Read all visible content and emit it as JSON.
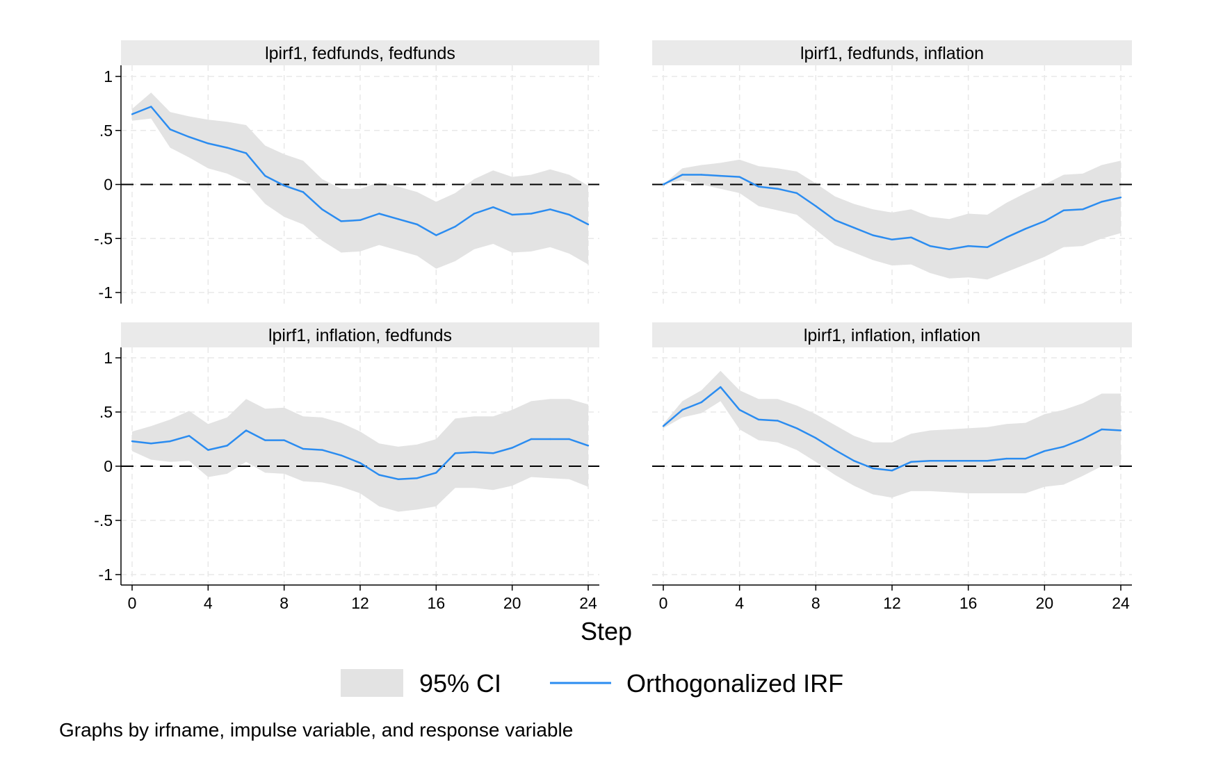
{
  "chart_data": {
    "type": "line",
    "panels": [
      {
        "title": "lpirf1, fedfunds, fedfunds",
        "x": [
          0,
          1,
          2,
          3,
          4,
          5,
          6,
          7,
          8,
          9,
          10,
          11,
          12,
          13,
          14,
          15,
          16,
          17,
          18,
          19,
          20,
          21,
          22,
          23,
          24
        ],
        "irf": [
          0.65,
          0.72,
          0.51,
          0.44,
          0.38,
          0.34,
          0.29,
          0.08,
          -0.01,
          -0.07,
          -0.23,
          -0.34,
          -0.33,
          -0.27,
          -0.32,
          -0.37,
          -0.47,
          -0.39,
          -0.27,
          -0.21,
          -0.28,
          -0.27,
          -0.23,
          -0.28,
          -0.37
        ],
        "ci_lower": [
          0.59,
          0.61,
          0.34,
          0.25,
          0.15,
          0.1,
          0.02,
          -0.18,
          -0.3,
          -0.37,
          -0.52,
          -0.63,
          -0.62,
          -0.56,
          -0.61,
          -0.66,
          -0.78,
          -0.71,
          -0.6,
          -0.55,
          -0.63,
          -0.62,
          -0.58,
          -0.64,
          -0.74
        ],
        "ci_upper": [
          0.7,
          0.85,
          0.67,
          0.63,
          0.6,
          0.58,
          0.55,
          0.36,
          0.28,
          0.22,
          0.05,
          -0.04,
          -0.04,
          0.02,
          -0.02,
          -0.07,
          -0.16,
          -0.08,
          0.05,
          0.13,
          0.07,
          0.09,
          0.14,
          0.09,
          -0.01
        ]
      },
      {
        "title": "lpirf1, fedfunds, inflation",
        "x": [
          0,
          1,
          2,
          3,
          4,
          5,
          6,
          7,
          8,
          9,
          10,
          11,
          12,
          13,
          14,
          15,
          16,
          17,
          18,
          19,
          20,
          21,
          22,
          23,
          24
        ],
        "irf": [
          0.0,
          0.09,
          0.09,
          0.08,
          0.07,
          -0.02,
          -0.04,
          -0.08,
          -0.2,
          -0.33,
          -0.4,
          -0.47,
          -0.51,
          -0.49,
          -0.57,
          -0.6,
          -0.57,
          -0.58,
          -0.49,
          -0.41,
          -0.34,
          -0.24,
          -0.23,
          -0.16,
          -0.12
        ],
        "ci_lower": [
          0.0,
          0.04,
          0.0,
          -0.04,
          -0.08,
          -0.2,
          -0.24,
          -0.28,
          -0.42,
          -0.56,
          -0.63,
          -0.7,
          -0.75,
          -0.74,
          -0.82,
          -0.87,
          -0.86,
          -0.88,
          -0.81,
          -0.74,
          -0.67,
          -0.58,
          -0.57,
          -0.5,
          -0.45
        ],
        "ci_upper": [
          0.0,
          0.15,
          0.18,
          0.2,
          0.23,
          0.17,
          0.15,
          0.12,
          0.01,
          -0.11,
          -0.18,
          -0.23,
          -0.26,
          -0.23,
          -0.3,
          -0.32,
          -0.27,
          -0.28,
          -0.17,
          -0.08,
          0.0,
          0.09,
          0.1,
          0.18,
          0.22
        ]
      },
      {
        "title": "lpirf1, inflation, fedfunds",
        "x": [
          0,
          1,
          2,
          3,
          4,
          5,
          6,
          7,
          8,
          9,
          10,
          11,
          12,
          13,
          14,
          15,
          16,
          17,
          18,
          19,
          20,
          21,
          22,
          23,
          24
        ],
        "irf": [
          0.23,
          0.21,
          0.23,
          0.28,
          0.15,
          0.19,
          0.33,
          0.24,
          0.24,
          0.16,
          0.15,
          0.1,
          0.03,
          -0.08,
          -0.12,
          -0.11,
          -0.06,
          0.12,
          0.13,
          0.12,
          0.17,
          0.25,
          0.25,
          0.25,
          0.19
        ],
        "ci_lower": [
          0.14,
          0.06,
          0.04,
          0.05,
          -0.1,
          -0.07,
          0.04,
          -0.06,
          -0.07,
          -0.14,
          -0.15,
          -0.19,
          -0.25,
          -0.37,
          -0.42,
          -0.4,
          -0.37,
          -0.2,
          -0.2,
          -0.22,
          -0.18,
          -0.1,
          -0.11,
          -0.12,
          -0.19
        ],
        "ci_upper": [
          0.32,
          0.37,
          0.43,
          0.51,
          0.39,
          0.45,
          0.62,
          0.53,
          0.54,
          0.46,
          0.45,
          0.4,
          0.32,
          0.21,
          0.18,
          0.2,
          0.25,
          0.44,
          0.46,
          0.46,
          0.52,
          0.6,
          0.62,
          0.62,
          0.57
        ]
      },
      {
        "title": "lpirf1, inflation, inflation",
        "x": [
          0,
          1,
          2,
          3,
          4,
          5,
          6,
          7,
          8,
          9,
          10,
          11,
          12,
          13,
          14,
          15,
          16,
          17,
          18,
          19,
          20,
          21,
          22,
          23,
          24
        ],
        "irf": [
          0.37,
          0.52,
          0.59,
          0.73,
          0.52,
          0.43,
          0.42,
          0.35,
          0.26,
          0.15,
          0.05,
          -0.02,
          -0.04,
          0.04,
          0.05,
          0.05,
          0.05,
          0.05,
          0.07,
          0.07,
          0.14,
          0.18,
          0.25,
          0.34,
          0.33
        ],
        "ci_lower": [
          0.35,
          0.45,
          0.49,
          0.6,
          0.34,
          0.24,
          0.22,
          0.15,
          0.04,
          -0.08,
          -0.18,
          -0.26,
          -0.29,
          -0.23,
          -0.23,
          -0.24,
          -0.25,
          -0.25,
          -0.25,
          -0.25,
          -0.19,
          -0.17,
          -0.09,
          0.0,
          0.0
        ],
        "ci_upper": [
          0.39,
          0.6,
          0.7,
          0.88,
          0.7,
          0.62,
          0.62,
          0.56,
          0.48,
          0.38,
          0.28,
          0.22,
          0.22,
          0.3,
          0.33,
          0.34,
          0.35,
          0.36,
          0.39,
          0.4,
          0.48,
          0.52,
          0.58,
          0.67,
          0.67
        ]
      }
    ],
    "xlabel": "Step",
    "ylabel": "",
    "xlim": [
      0,
      24
    ],
    "ylim": [
      -1,
      1
    ],
    "xticks": [
      "0",
      "4",
      "8",
      "12",
      "16",
      "20",
      "24"
    ],
    "xtick_values": [
      0,
      4,
      8,
      12,
      16,
      20,
      24
    ],
    "yticks": [
      "1",
      ".5",
      "0",
      "-.5",
      "-1"
    ],
    "ytick_values": [
      1,
      0.5,
      0,
      -0.5,
      -1
    ],
    "grid": true,
    "legend": {
      "position": "bottom",
      "items": [
        {
          "label": "95% CI",
          "color": "#e3e3e3"
        },
        {
          "label": "Orthogonalized IRF",
          "color": "#2b8cf0"
        }
      ]
    },
    "note": "Graphs by irfname, impulse variable, and response variable",
    "colors": {
      "ci_band": "#e3e3e3",
      "irf_line": "#2b8cf0",
      "title_bar": "#eaeaea",
      "grid": "#e8e8e8",
      "zero_line": "#000000"
    }
  }
}
